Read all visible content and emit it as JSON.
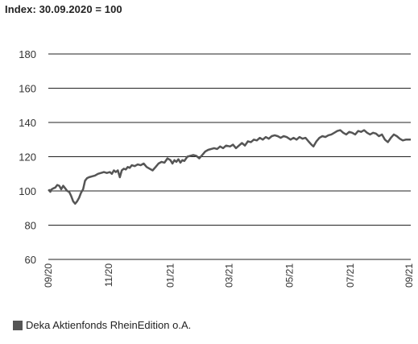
{
  "chart_data": {
    "type": "line",
    "title": "Index: 30.09.2020 = 100",
    "xlabel": "",
    "ylabel": "",
    "ylim": [
      60,
      180
    ],
    "y_ticks": [
      60,
      80,
      100,
      120,
      140,
      160,
      180
    ],
    "x_range": [
      "2020-09-30",
      "2021-09-30"
    ],
    "x_ticks": [
      {
        "label": "09/20",
        "date": "2020-09-30"
      },
      {
        "label": "11/20",
        "date": "2020-11-30"
      },
      {
        "label": "01/21",
        "date": "2021-01-31"
      },
      {
        "label": "03/21",
        "date": "2021-03-31"
      },
      {
        "label": "05/21",
        "date": "2021-05-31"
      },
      {
        "label": "07/21",
        "date": "2021-07-31"
      },
      {
        "label": "09/21",
        "date": "2021-09-30"
      }
    ],
    "grid": true,
    "legend_position": "bottom-left",
    "line_color": "#555555",
    "series": [
      {
        "name": "Deka Aktienfonds RheinEdition o.A.",
        "points": [
          [
            "2020-09-30",
            100
          ],
          [
            "2020-10-01",
            100.5
          ],
          [
            "2020-10-02",
            99.5
          ],
          [
            "2020-10-03",
            100.8
          ],
          [
            "2020-10-05",
            101.5
          ],
          [
            "2020-10-07",
            102
          ],
          [
            "2020-10-09",
            103.5
          ],
          [
            "2020-10-11",
            103
          ],
          [
            "2020-10-13",
            101
          ],
          [
            "2020-10-15",
            103
          ],
          [
            "2020-10-17",
            101.5
          ],
          [
            "2020-10-19",
            100
          ],
          [
            "2020-10-21",
            99.5
          ],
          [
            "2020-10-23",
            97
          ],
          [
            "2020-10-25",
            94
          ],
          [
            "2020-10-27",
            92.5
          ],
          [
            "2020-10-29",
            94
          ],
          [
            "2020-10-31",
            96
          ],
          [
            "2020-11-02",
            99
          ],
          [
            "2020-11-04",
            101
          ],
          [
            "2020-11-06",
            106
          ],
          [
            "2020-11-08",
            107.5
          ],
          [
            "2020-11-10",
            108
          ],
          [
            "2020-11-13",
            108.5
          ],
          [
            "2020-11-16",
            109
          ],
          [
            "2020-11-19",
            110
          ],
          [
            "2020-11-22",
            110.5
          ],
          [
            "2020-11-25",
            111
          ],
          [
            "2020-11-28",
            110.5
          ],
          [
            "2020-12-01",
            111
          ],
          [
            "2020-12-03",
            110
          ],
          [
            "2020-12-05",
            112
          ],
          [
            "2020-12-07",
            111
          ],
          [
            "2020-12-09",
            112
          ],
          [
            "2020-12-11",
            108
          ],
          [
            "2020-12-13",
            112
          ],
          [
            "2020-12-15",
            113
          ],
          [
            "2020-12-17",
            112.5
          ],
          [
            "2020-12-19",
            114
          ],
          [
            "2020-12-21",
            113.5
          ],
          [
            "2020-12-23",
            115
          ],
          [
            "2020-12-26",
            114.5
          ],
          [
            "2020-12-29",
            115.5
          ],
          [
            "2021-01-01",
            115
          ],
          [
            "2021-01-04",
            116
          ],
          [
            "2021-01-07",
            114
          ],
          [
            "2021-01-10",
            113
          ],
          [
            "2021-01-13",
            112
          ],
          [
            "2021-01-16",
            114
          ],
          [
            "2021-01-19",
            116
          ],
          [
            "2021-01-22",
            117
          ],
          [
            "2021-01-25",
            116.5
          ],
          [
            "2021-01-28",
            119
          ],
          [
            "2021-01-31",
            118
          ],
          [
            "2021-02-02",
            116
          ],
          [
            "2021-02-04",
            118
          ],
          [
            "2021-02-06",
            117
          ],
          [
            "2021-02-08",
            118.5
          ],
          [
            "2021-02-10",
            116.5
          ],
          [
            "2021-02-12",
            118
          ],
          [
            "2021-02-14",
            117.5
          ],
          [
            "2021-02-17",
            120
          ],
          [
            "2021-02-20",
            120.5
          ],
          [
            "2021-02-23",
            121
          ],
          [
            "2021-02-26",
            120.5
          ],
          [
            "2021-03-01",
            119
          ],
          [
            "2021-03-04",
            121
          ],
          [
            "2021-03-07",
            123
          ],
          [
            "2021-03-10",
            124
          ],
          [
            "2021-03-13",
            124.5
          ],
          [
            "2021-03-16",
            125
          ],
          [
            "2021-03-19",
            124.5
          ],
          [
            "2021-03-22",
            126
          ],
          [
            "2021-03-25",
            125
          ],
          [
            "2021-03-28",
            126.5
          ],
          [
            "2021-04-01",
            126
          ],
          [
            "2021-04-04",
            127
          ],
          [
            "2021-04-07",
            125
          ],
          [
            "2021-04-10",
            126.5
          ],
          [
            "2021-04-13",
            128
          ],
          [
            "2021-04-16",
            126.5
          ],
          [
            "2021-04-19",
            129
          ],
          [
            "2021-04-22",
            128.5
          ],
          [
            "2021-04-25",
            130
          ],
          [
            "2021-04-28",
            129.5
          ],
          [
            "2021-05-01",
            131
          ],
          [
            "2021-05-04",
            130
          ],
          [
            "2021-05-07",
            131.5
          ],
          [
            "2021-05-10",
            130.5
          ],
          [
            "2021-05-13",
            132
          ],
          [
            "2021-05-16",
            132.5
          ],
          [
            "2021-05-19",
            132
          ],
          [
            "2021-05-22",
            131
          ],
          [
            "2021-05-25",
            132
          ],
          [
            "2021-05-28",
            131.5
          ],
          [
            "2021-06-01",
            130
          ],
          [
            "2021-06-04",
            131
          ],
          [
            "2021-06-07",
            130
          ],
          [
            "2021-06-10",
            131.5
          ],
          [
            "2021-06-13",
            130.5
          ],
          [
            "2021-06-16",
            131
          ],
          [
            "2021-06-19",
            129
          ],
          [
            "2021-06-22",
            127
          ],
          [
            "2021-06-24",
            126
          ],
          [
            "2021-06-27",
            129
          ],
          [
            "2021-06-30",
            131
          ],
          [
            "2021-07-03",
            132
          ],
          [
            "2021-07-06",
            131.5
          ],
          [
            "2021-07-09",
            132.5
          ],
          [
            "2021-07-12",
            133
          ],
          [
            "2021-07-15",
            134
          ],
          [
            "2021-07-18",
            135
          ],
          [
            "2021-07-21",
            135.5
          ],
          [
            "2021-07-24",
            134
          ],
          [
            "2021-07-27",
            133
          ],
          [
            "2021-07-30",
            134.5
          ],
          [
            "2021-08-02",
            134
          ],
          [
            "2021-08-05",
            133
          ],
          [
            "2021-08-08",
            135
          ],
          [
            "2021-08-11",
            134.5
          ],
          [
            "2021-08-14",
            135.5
          ],
          [
            "2021-08-17",
            134
          ],
          [
            "2021-08-20",
            133
          ],
          [
            "2021-08-23",
            134
          ],
          [
            "2021-08-26",
            133.5
          ],
          [
            "2021-08-29",
            132
          ],
          [
            "2021-09-01",
            133
          ],
          [
            "2021-09-04",
            130
          ],
          [
            "2021-09-07",
            128.5
          ],
          [
            "2021-09-10",
            131
          ],
          [
            "2021-09-13",
            133
          ],
          [
            "2021-09-16",
            132
          ],
          [
            "2021-09-19",
            130.5
          ],
          [
            "2021-09-22",
            129.5
          ],
          [
            "2021-09-25",
            130
          ],
          [
            "2021-09-28",
            130
          ],
          [
            "2021-09-30",
            130
          ]
        ]
      }
    ]
  }
}
